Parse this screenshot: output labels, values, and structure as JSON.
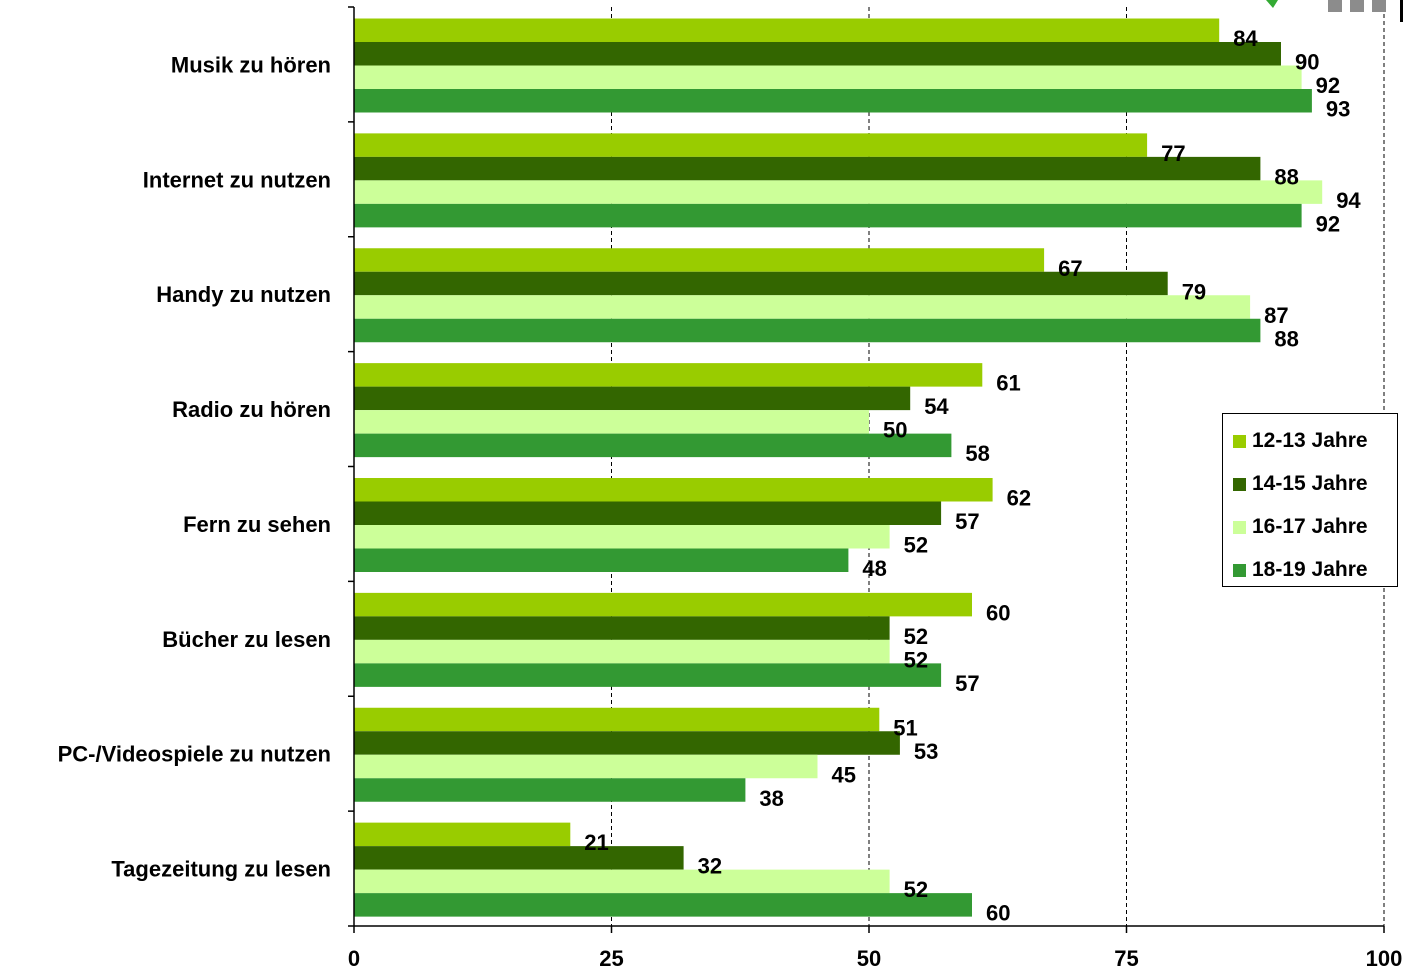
{
  "chart_data": {
    "type": "bar",
    "orientation": "horizontal",
    "categories": [
      "Musik zu hören",
      "Internet zu nutzen",
      "Handy zu nutzen",
      "Radio zu hören",
      "Fern zu sehen",
      "Bücher zu lesen",
      "PC-/Videospiele zu nutzen",
      "Tagezeitung zu lesen"
    ],
    "series": [
      {
        "name": "12-13 Jahre",
        "color": "#99cc00",
        "values": [
          84,
          77,
          67,
          61,
          62,
          60,
          51,
          21
        ]
      },
      {
        "name": "14-15 Jahre",
        "color": "#336600",
        "values": [
          90,
          88,
          79,
          54,
          57,
          52,
          53,
          32
        ]
      },
      {
        "name": "16-17 Jahre",
        "color": "#ccff99",
        "values": [
          92,
          94,
          87,
          50,
          52,
          52,
          45,
          52
        ]
      },
      {
        "name": "18-19 Jahre",
        "color": "#339933",
        "values": [
          93,
          92,
          88,
          58,
          48,
          57,
          38,
          60
        ]
      }
    ],
    "x_ticks": [
      "0",
      "25",
      "50",
      "75",
      "100"
    ],
    "xlim": [
      0,
      100
    ],
    "grid": "vertical dashed",
    "legend_position": "right",
    "title": "",
    "xlabel": "",
    "ylabel": ""
  }
}
